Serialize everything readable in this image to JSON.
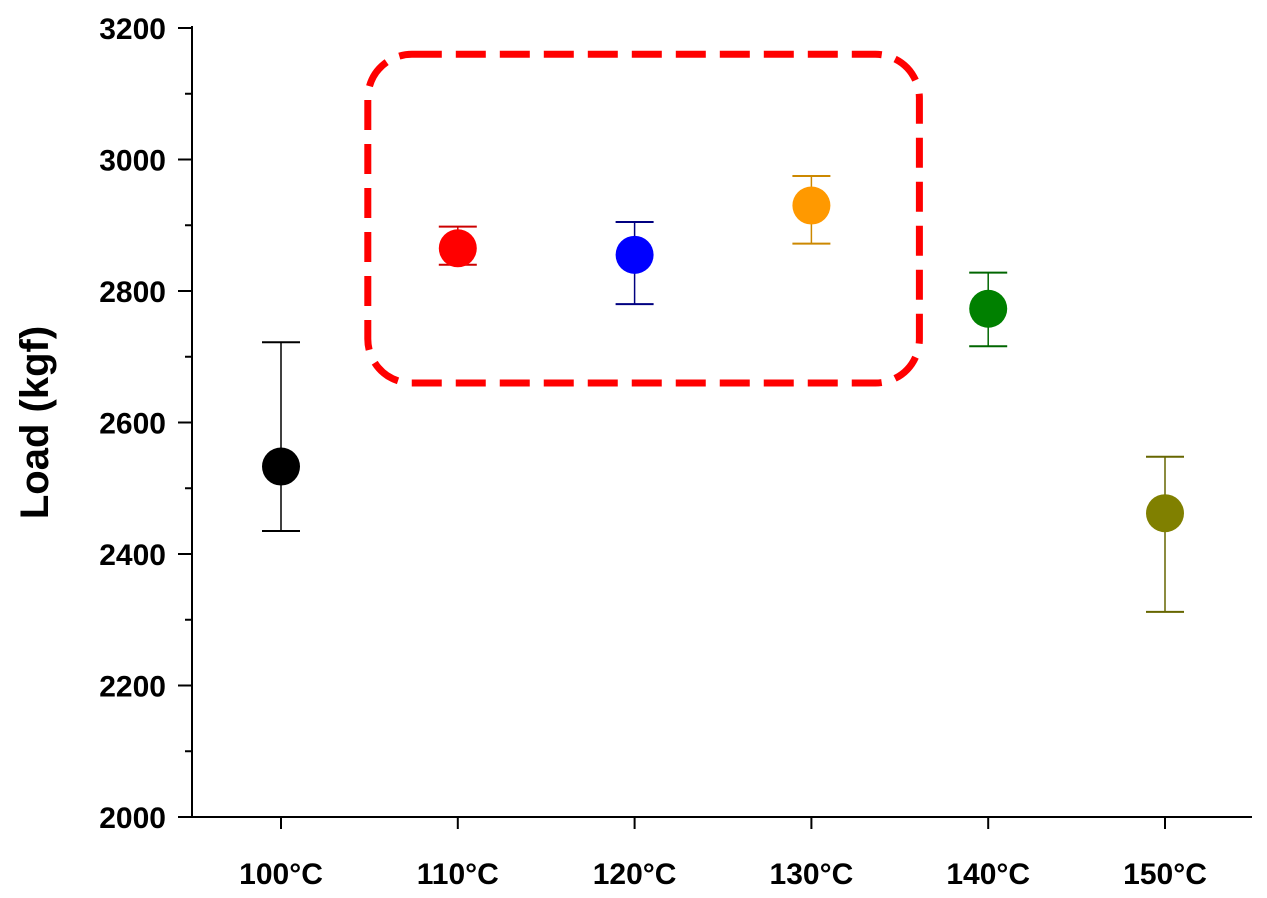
{
  "chart_data": {
    "type": "scatter",
    "title": "",
    "xlabel": "",
    "ylabel": "Load (kgf)",
    "categories": [
      "100°C",
      "110°C",
      "120°C",
      "130°C",
      "140°C",
      "150°C"
    ],
    "values": [
      2533,
      2865,
      2855,
      2930,
      2773,
      2462
    ],
    "error_low": [
      2435,
      2840,
      2780,
      2872,
      2716,
      2312
    ],
    "error_high": [
      2722,
      2898,
      2905,
      2975,
      2828,
      2548
    ],
    "point_colors": [
      "#000000",
      "#ff0000",
      "#0000ff",
      "#ff9900",
      "#008000",
      "#808000"
    ],
    "error_colors": [
      "#000000",
      "#cc0000",
      "#000080",
      "#cc8800",
      "#006600",
      "#666600"
    ],
    "ylim": [
      2000,
      3200
    ],
    "yticks": [
      2000,
      2200,
      2400,
      2600,
      2800,
      3000,
      3200
    ],
    "grid": false,
    "legend": "none",
    "highlight": {
      "shape": "dashed-rounded-rectangle",
      "color": "#ff0000",
      "covers_categories": [
        "110°C",
        "120°C",
        "130°C"
      ],
      "y_range": [
        2660,
        3160
      ]
    }
  }
}
